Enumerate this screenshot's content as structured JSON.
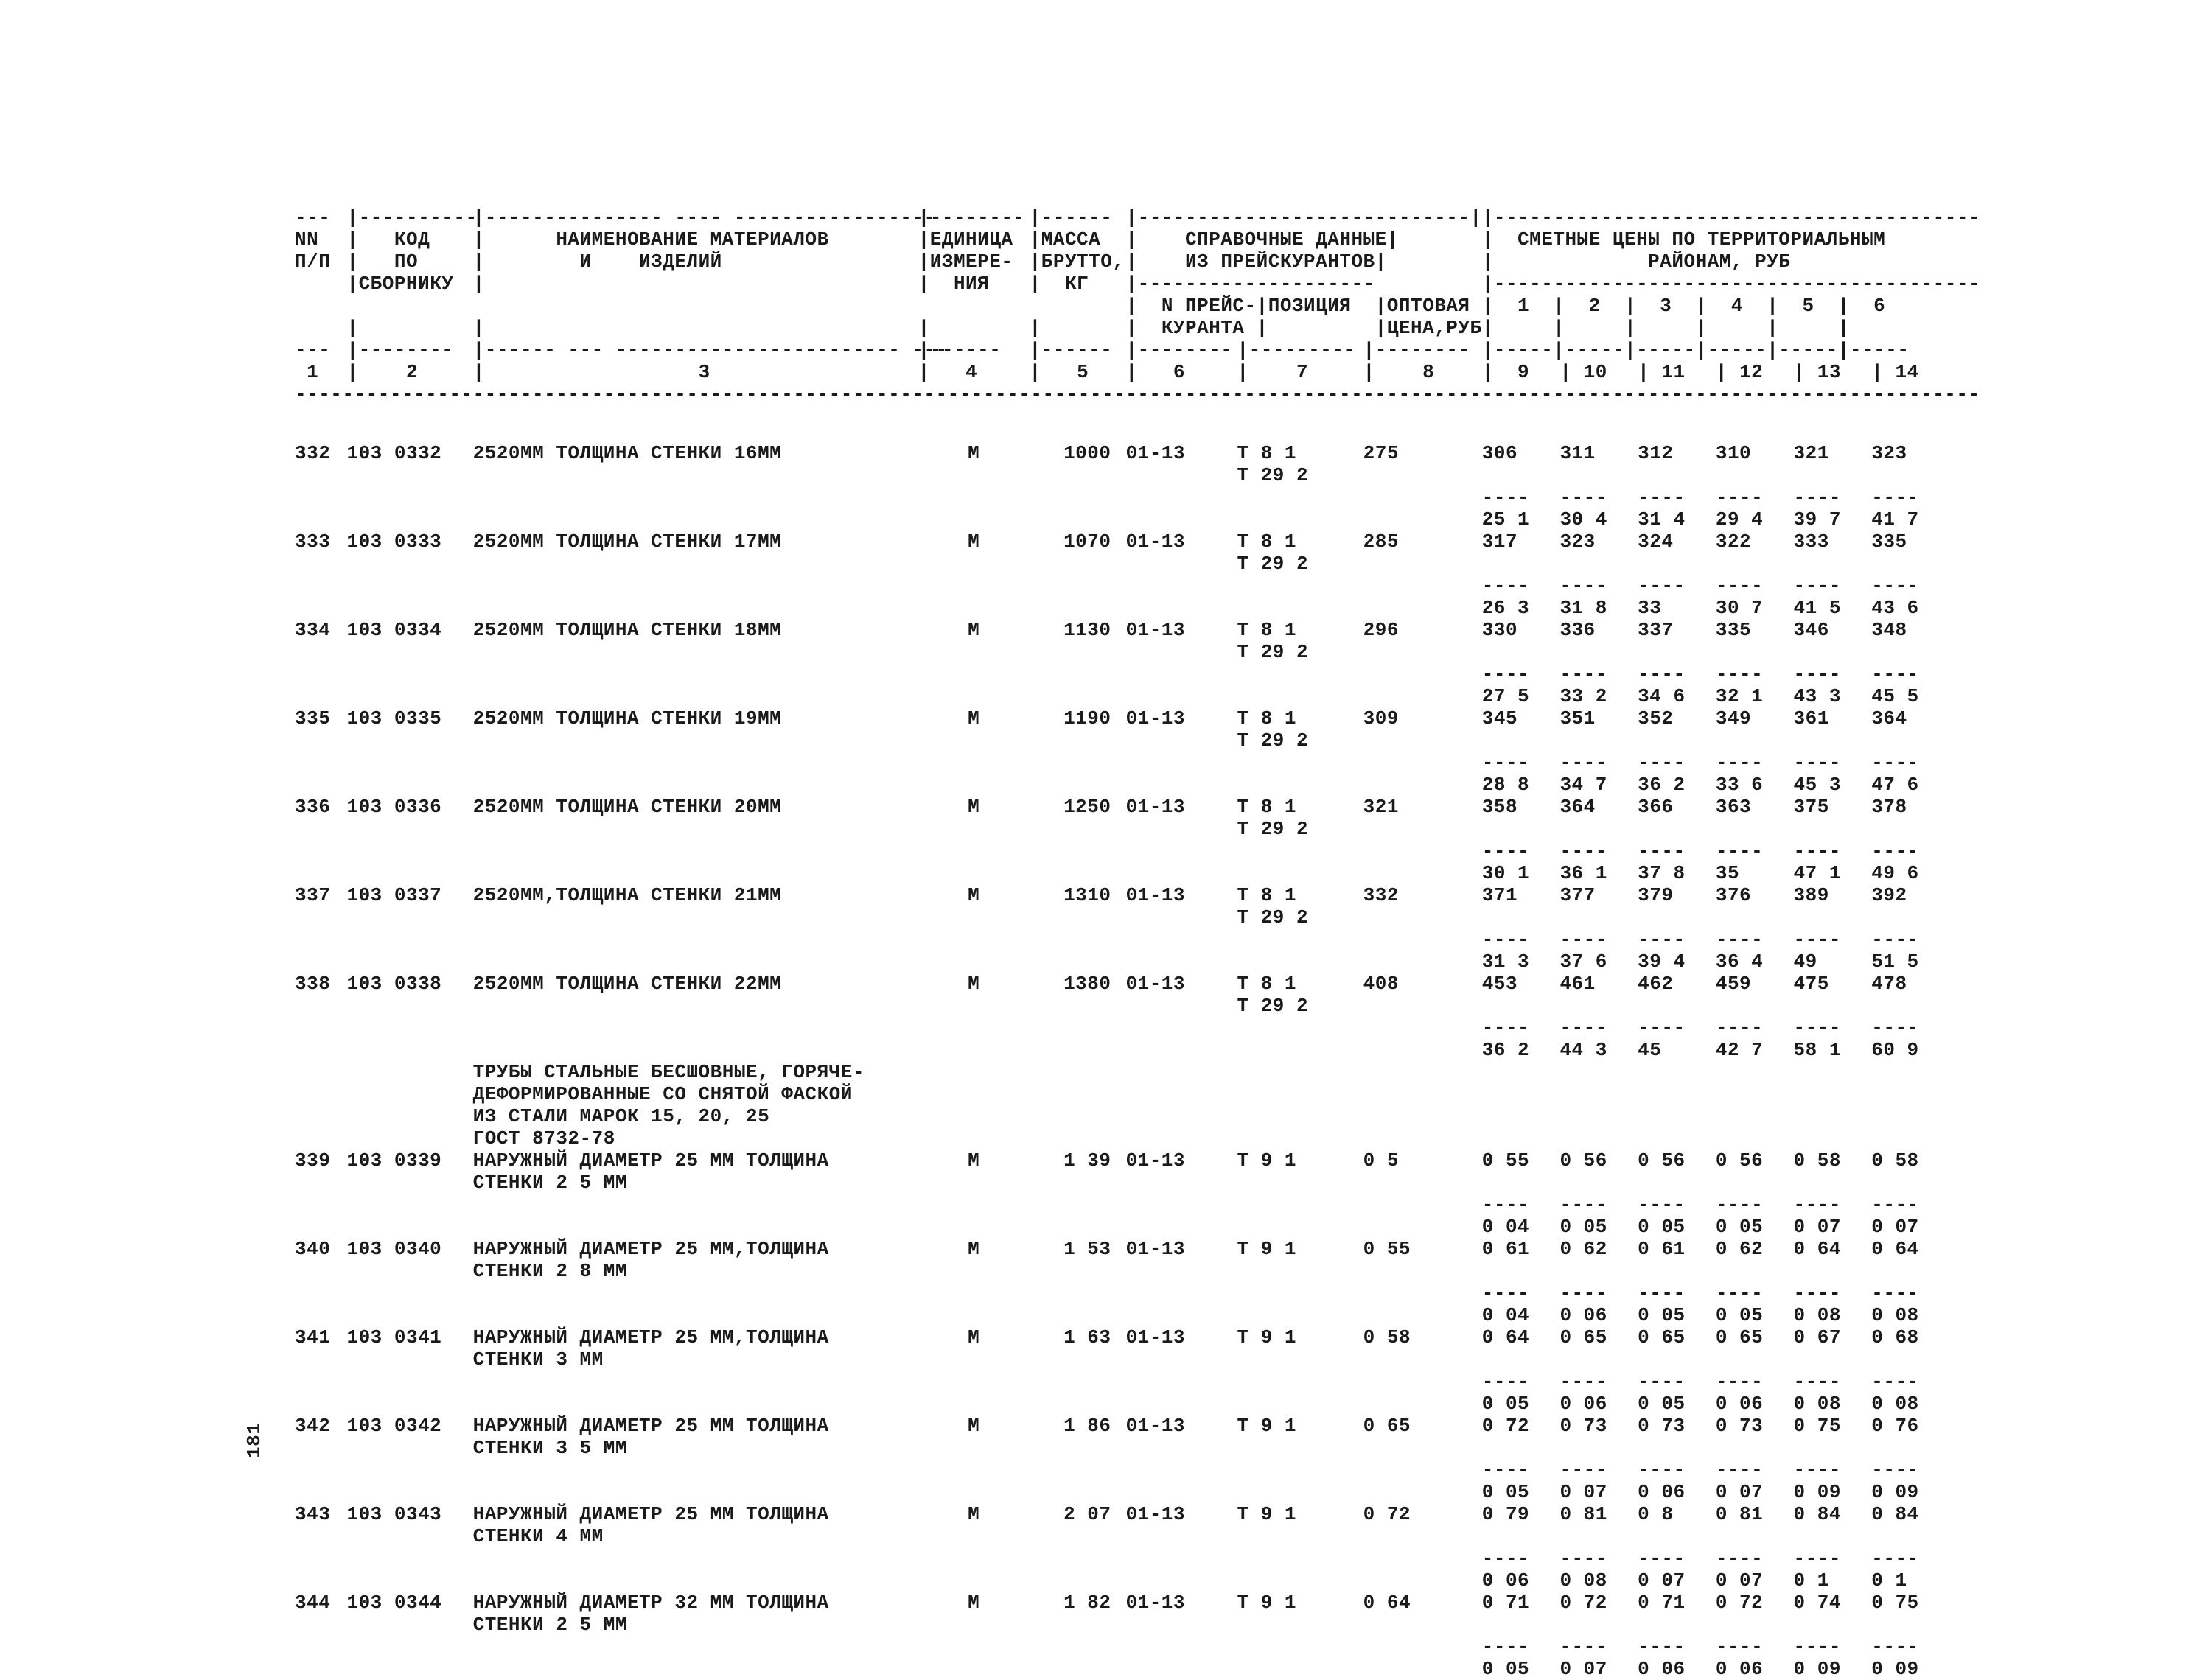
{
  "header": {
    "col_nn": "NN",
    "col_pp": "П/П",
    "col_kod": "КОД",
    "col_po": "ПО",
    "col_sbornik": "СБОРНИКУ",
    "col_name1": "НАИМЕНОВАНИЕ МАТЕРИАЛОВ",
    "col_name2": "И    ИЗДЕЛИЙ",
    "col_unit1": "ЕДИНИЦА",
    "col_unit2": "ИЗМЕРЕ-",
    "col_unit3": "НИЯ",
    "col_mass1": "МАССА",
    "col_mass2": "БРУТТО,",
    "col_mass3": "КГ",
    "col_ref1": "СПРАВОЧНЫЕ ДАННЫЕ",
    "col_ref2": "ИЗ ПРЕЙСКУРАНТОВ",
    "col_npk1": "N ПРЕЙС-",
    "col_npk2": "КУРАНТА",
    "col_pos": "ПОЗИЦИЯ",
    "col_opt1": "ОПТОВАЯ",
    "col_opt2": "ЦЕНА,РУБ",
    "col_prices1": "СМЕТНЫЕ ЦЕНЫ ПО ТЕРРИТОРИАЛЬНЫМ",
    "col_prices2": "РАЙОНАМ, РУБ",
    "p1": "1",
    "p2": "2",
    "p3": "3",
    "p4": "4",
    "p5": "5",
    "p6": "6",
    "n1": "1",
    "n2": "2",
    "n3": "3",
    "n4": "4",
    "n5": "5",
    "n6": "6",
    "n7": "7",
    "n8": "8",
    "n9": "9",
    "n10": "10",
    "n11": "11",
    "n12": "12",
    "n13": "13",
    "n14": "14"
  },
  "section": {
    "l1": "ТРУБЫ СТАЛЬНЫЕ БЕСШОВНЫЕ, ГОРЯЧЕ-",
    "l2": "ДЕФОРМИРОВАННЫЕ СО СНЯТОЙ ФАСКОЙ",
    "l3": "ИЗ СТАЛИ МАРОК 15, 20, 25",
    "l4": "ГОСТ 8732-78"
  },
  "rows": [
    {
      "nn": "332",
      "kod": "103 0332",
      "name": "2520ММ ТОЛЩИНА СТЕНКИ 16ММ",
      "unit": "М",
      "mass": "1000",
      "npk": "01-13",
      "pos": "Т 8 1",
      "pos2": "Т 29 2",
      "opt": "275",
      "pr": [
        "306",
        "311",
        "312",
        "310",
        "321",
        "323"
      ],
      "pr2": [
        "25 1",
        "30 4",
        "31 4",
        "29 4",
        "39 7",
        "41 7"
      ]
    },
    {
      "nn": "333",
      "kod": "103 0333",
      "name": "2520ММ ТОЛЩИНА СТЕНКИ 17ММ",
      "unit": "М",
      "mass": "1070",
      "npk": "01-13",
      "pos": "Т 8 1",
      "pos2": "Т 29 2",
      "opt": "285",
      "pr": [
        "317",
        "323",
        "324",
        "322",
        "333",
        "335"
      ],
      "pr2": [
        "26 3",
        "31 8",
        "33",
        "30 7",
        "41 5",
        "43 6"
      ]
    },
    {
      "nn": "334",
      "kod": "103 0334",
      "name": "2520ММ ТОЛЩИНА СТЕНКИ 18ММ",
      "unit": "М",
      "mass": "1130",
      "npk": "01-13",
      "pos": "Т 8 1",
      "pos2": "Т 29 2",
      "opt": "296",
      "pr": [
        "330",
        "336",
        "337",
        "335",
        "346",
        "348"
      ],
      "pr2": [
        "27 5",
        "33 2",
        "34 6",
        "32 1",
        "43 3",
        "45 5"
      ]
    },
    {
      "nn": "335",
      "kod": "103 0335",
      "name": "2520ММ ТОЛЩИНА СТЕНКИ 19ММ",
      "unit": "М",
      "mass": "1190",
      "npk": "01-13",
      "pos": "Т 8 1",
      "pos2": "Т 29 2",
      "opt": "309",
      "pr": [
        "345",
        "351",
        "352",
        "349",
        "361",
        "364"
      ],
      "pr2": [
        "28 8",
        "34 7",
        "36 2",
        "33 6",
        "45 3",
        "47 6"
      ]
    },
    {
      "nn": "336",
      "kod": "103 0336",
      "name": "2520ММ ТОЛЩИНА СТЕНКИ 20ММ",
      "unit": "М",
      "mass": "1250",
      "npk": "01-13",
      "pos": "Т 8 1",
      "pos2": "Т 29 2",
      "opt": "321",
      "pr": [
        "358",
        "364",
        "366",
        "363",
        "375",
        "378"
      ],
      "pr2": [
        "30 1",
        "36 1",
        "37 8",
        "35",
        "47 1",
        "49 6"
      ]
    },
    {
      "nn": "337",
      "kod": "103 0337",
      "name": "2520ММ,ТОЛЩИНА СТЕНКИ 21ММ",
      "unit": "М",
      "mass": "1310",
      "npk": "01-13",
      "pos": "Т 8 1",
      "pos2": "Т 29 2",
      "opt": "332",
      "pr": [
        "371",
        "377",
        "379",
        "376",
        "389",
        "392"
      ],
      "pr2": [
        "31 3",
        "37 6",
        "39 4",
        "36 4",
        "49",
        "51 5"
      ]
    },
    {
      "nn": "338",
      "kod": "103 0338",
      "name": "2520ММ ТОЛЩИНА СТЕНКИ 22ММ",
      "unit": "М",
      "mass": "1380",
      "npk": "01-13",
      "pos": "Т 8 1",
      "pos2": "Т 29 2",
      "opt": "408",
      "pr": [
        "453",
        "461",
        "462",
        "459",
        "475",
        "478"
      ],
      "pr2": [
        "36 2",
        "44 3",
        "45",
        "42 7",
        "58 1",
        "60 9"
      ]
    },
    {
      "nn": "339",
      "kod": "103 0339",
      "name": "НАРУЖНЫЙ ДИАМЕТР 25 ММ ТОЛЩИНА",
      "name2": "СТЕНКИ 2 5 ММ",
      "unit": "М",
      "mass": "1 39",
      "npk": "01-13",
      "pos": "Т 9 1",
      "opt": "0 5",
      "pr": [
        "0 55",
        "0 56",
        "0 56",
        "0 56",
        "0 58",
        "0 58"
      ],
      "pr2": [
        "0 04",
        "0 05",
        "0 05",
        "0 05",
        "0 07",
        "0 07"
      ]
    },
    {
      "nn": "340",
      "kod": "103 0340",
      "name": "НАРУЖНЫЙ ДИАМЕТР 25 ММ,ТОЛЩИНА",
      "name2": "СТЕНКИ 2 8 ММ",
      "unit": "М",
      "mass": "1 53",
      "npk": "01-13",
      "pos": "Т 9 1",
      "opt": "0 55",
      "pr": [
        "0 61",
        "0 62",
        "0 61",
        "0 62",
        "0 64",
        "0 64"
      ],
      "pr2": [
        "0 04",
        "0 06",
        "0 05",
        "0 05",
        "0 08",
        "0 08"
      ]
    },
    {
      "nn": "341",
      "kod": "103 0341",
      "name": "НАРУЖНЫЙ ДИАМЕТР 25 ММ,ТОЛЩИНА",
      "name2": "СТЕНКИ 3 ММ",
      "unit": "М",
      "mass": "1 63",
      "npk": "01-13",
      "pos": "Т 9 1",
      "opt": "0 58",
      "pr": [
        "0 64",
        "0 65",
        "0 65",
        "0 65",
        "0 67",
        "0 68"
      ],
      "pr2": [
        "0 05",
        "0 06",
        "0 05",
        "0 06",
        "0 08",
        "0 08"
      ]
    },
    {
      "nn": "342",
      "kod": "103 0342",
      "name": "НАРУЖНЫЙ ДИАМЕТР 25 ММ ТОЛЩИНА",
      "name2": "СТЕНКИ 3 5 ММ",
      "unit": "М",
      "mass": "1 86",
      "npk": "01-13",
      "pos": "Т 9 1",
      "opt": "0 65",
      "pr": [
        "0 72",
        "0 73",
        "0 73",
        "0 73",
        "0 75",
        "0 76"
      ],
      "pr2": [
        "0 05",
        "0 07",
        "0 06",
        "0 07",
        "0 09",
        "0 09"
      ]
    },
    {
      "nn": "343",
      "kod": "103 0343",
      "name": "НАРУЖНЫЙ ДИАМЕТР 25 ММ ТОЛЩИНА",
      "name2": "СТЕНКИ 4 ММ",
      "unit": "М",
      "mass": "2 07",
      "npk": "01-13",
      "pos": "Т 9 1",
      "opt": "0 72",
      "pr": [
        "0 79",
        "0 81",
        "0 8",
        "0 81",
        "0 84",
        "0 84"
      ],
      "pr2": [
        "0 06",
        "0 08",
        "0 07",
        "0 07",
        "0 1",
        "0 1"
      ]
    },
    {
      "nn": "344",
      "kod": "103 0344",
      "name": "НАРУЖНЫЙ ДИАМЕТР 32 ММ ТОЛЩИНА",
      "name2": "СТЕНКИ 2 5 ММ",
      "unit": "М",
      "mass": "1 82",
      "npk": "01-13",
      "pos": "Т 9 1",
      "opt": "0 64",
      "pr": [
        "0 71",
        "0 72",
        "0 71",
        "0 72",
        "0 74",
        "0 75"
      ],
      "pr2": [
        "0 05",
        "0 07",
        "0 06",
        "0 06",
        "0 09",
        "0 09"
      ]
    }
  ],
  "pagenum": "181",
  "dash4": "----",
  "dash3": "---"
}
